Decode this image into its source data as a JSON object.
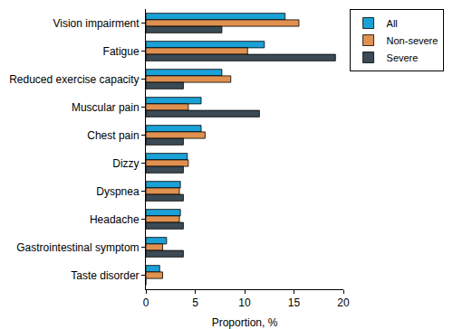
{
  "chart_data": {
    "type": "bar",
    "orientation": "horizontal",
    "categories": [
      "Vision impairment",
      "Fatigue",
      "Reduced exercise capacity",
      "Muscular pain",
      "Chest pain",
      "Dizzy",
      "Dyspnea",
      "Headache",
      "Gastrointestinal symptom",
      "Taste disorder"
    ],
    "series": [
      {
        "name": "All",
        "color": "#1ba1d6",
        "values": [
          14.1,
          12.0,
          7.7,
          5.6,
          5.6,
          4.2,
          3.5,
          3.5,
          2.1,
          1.4
        ]
      },
      {
        "name": "Non-severe",
        "color": "#e0904f",
        "values": [
          15.5,
          10.3,
          8.6,
          4.3,
          6.0,
          4.3,
          3.4,
          3.4,
          1.7,
          1.7
        ]
      },
      {
        "name": "Severe",
        "color": "#3b4a55",
        "values": [
          7.7,
          19.2,
          3.8,
          11.5,
          3.8,
          3.8,
          3.8,
          3.8,
          3.8,
          0
        ]
      }
    ],
    "x_label": "Proportion, %",
    "xlim": [
      0,
      20
    ],
    "xticks": [
      0,
      5,
      10,
      15,
      20
    ],
    "grid": false,
    "legend": "top right"
  }
}
